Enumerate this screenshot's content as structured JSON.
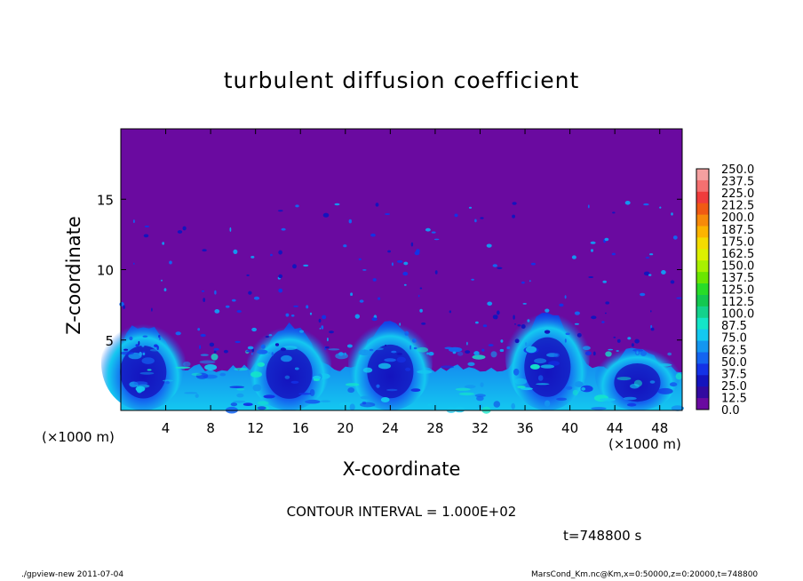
{
  "chart_data": {
    "type": "heatmap",
    "title": "turbulent diffusion coefficient",
    "xlabel": "X-coordinate",
    "ylabel": "Z-coordinate",
    "x_unit": "(×1000 m)",
    "y_unit": "(×1000 m)",
    "xlim": [
      0,
      50
    ],
    "ylim": [
      0,
      20
    ],
    "x_ticks": [
      "4",
      "8",
      "12",
      "16",
      "20",
      "24",
      "28",
      "32",
      "36",
      "40",
      "44",
      "48"
    ],
    "y_ticks": [
      "5",
      "10",
      "15"
    ],
    "x_tick_values": [
      4,
      8,
      12,
      16,
      20,
      24,
      28,
      32,
      36,
      40,
      44,
      48
    ],
    "y_tick_values": [
      5,
      10,
      15
    ],
    "contour_interval": "CONTOUR INTERVAL = 1.000E+02",
    "time": "t=748800 s",
    "colorbar": {
      "labels": [
        "250.0",
        "237.5",
        "225.0",
        "212.5",
        "200.0",
        "187.5",
        "175.0",
        "162.5",
        "150.0",
        "137.5",
        "125.0",
        "112.5",
        "100.0",
        "87.5",
        "75.0",
        "62.5",
        "50.0",
        "37.5",
        "25.0",
        "12.5",
        "0.0"
      ],
      "colors": [
        "#f4a0a0",
        "#f47070",
        "#f03c3c",
        "#f05a14",
        "#f78a0a",
        "#fcb400",
        "#f4dc00",
        "#dcf000",
        "#a8f000",
        "#6ae600",
        "#28dc28",
        "#14c850",
        "#14d28c",
        "#14e6c8",
        "#14c8f0",
        "#1496f0",
        "#1464f0",
        "#1432e6",
        "#1414be",
        "#320aa0",
        "#6a0aa0"
      ]
    },
    "plumes": [
      {
        "x_center": 2,
        "top": 6.2
      },
      {
        "x_center": 15,
        "top": 6.0
      },
      {
        "x_center": 24,
        "top": 6.3
      },
      {
        "x_center": 38,
        "top": 7.0
      },
      {
        "x_center": 46,
        "top": 4.5
      }
    ],
    "background_value": 0.0
  },
  "footer": {
    "left": "./gpview-new   2011-07-04",
    "right": "MarsCond_Km.nc@Km,x=0:50000,z=0:20000,t=748800"
  }
}
